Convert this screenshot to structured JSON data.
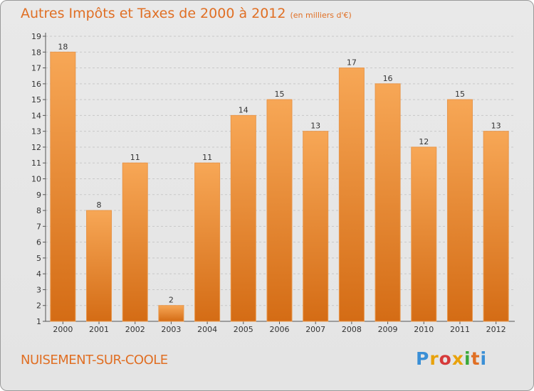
{
  "title": {
    "main": "Autres Impôts et Taxes de 2000 à 2012",
    "unit": "(en milliers d'€)"
  },
  "commune": "NUISEMENT-SUR-COOLE",
  "logo": {
    "text": "Proxiti",
    "letters": [
      "P",
      "r",
      "o",
      "x",
      "i",
      "t",
      "i"
    ],
    "colors": [
      "#3a8fd6",
      "#e8a20c",
      "#d63a3a",
      "#e8a20c",
      "#3aa83a",
      "#e06f24",
      "#3a8fd6"
    ]
  },
  "colors": {
    "bar_light": "#f7a756",
    "bar_dark": "#d46c15",
    "accent": "#e06f24",
    "grid": "#c8c8c8",
    "text": "#333333"
  },
  "chart_data": {
    "type": "bar",
    "title": "Autres Impôts et Taxes de 2000 à 2012",
    "subtitle": "(en milliers d'€)",
    "xlabel": "",
    "ylabel": "",
    "categories": [
      "2000",
      "2001",
      "2002",
      "2003",
      "2004",
      "2005",
      "2006",
      "2007",
      "2008",
      "2009",
      "2010",
      "2011",
      "2012"
    ],
    "values": [
      18,
      8,
      11,
      2,
      11,
      14,
      15,
      13,
      17,
      16,
      12,
      15,
      13
    ],
    "ylim": [
      1,
      19
    ],
    "yticks": [
      1,
      2,
      3,
      4,
      5,
      6,
      7,
      8,
      9,
      10,
      11,
      12,
      13,
      14,
      15,
      16,
      17,
      18,
      19
    ],
    "grid": true,
    "legend": "none"
  }
}
